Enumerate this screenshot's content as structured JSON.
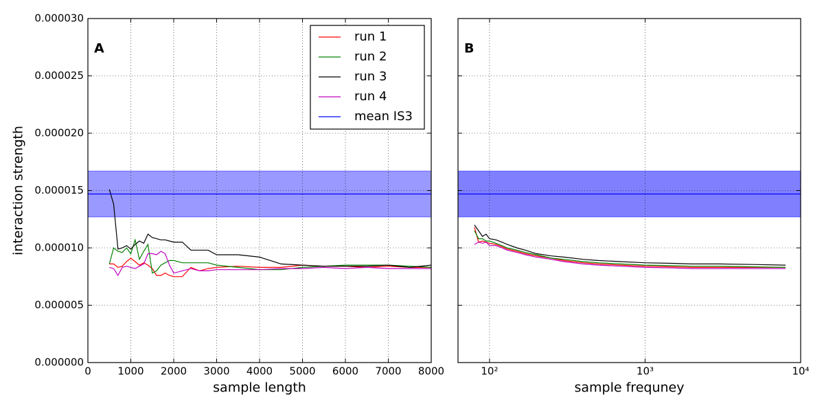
{
  "chart_data": [
    {
      "type": "line",
      "panel_label": "A",
      "xlabel": "sample length",
      "ylabel": "interaction strength",
      "xlim": [
        0,
        8000
      ],
      "xticks": [
        0,
        1000,
        2000,
        3000,
        4000,
        5000,
        6000,
        7000,
        8000
      ],
      "ylim": [
        0,
        3e-05
      ],
      "yticks": [
        {
          "value": 0,
          "label": "0.000000"
        },
        {
          "value": 5e-06,
          "label": "0.000005"
        },
        {
          "value": 1e-05,
          "label": "0.000010"
        },
        {
          "value": 1.5e-05,
          "label": "0.000015"
        },
        {
          "value": 2e-05,
          "label": "0.000020"
        },
        {
          "value": 2.5e-05,
          "label": "0.000025"
        },
        {
          "value": 3e-05,
          "label": "0.000030"
        }
      ],
      "grid": true,
      "legend": "upper right",
      "x": [
        500,
        600,
        700,
        800,
        900,
        1000,
        1100,
        1200,
        1300,
        1400,
        1500,
        1600,
        1700,
        1800,
        1900,
        2000,
        2200,
        2400,
        2600,
        2800,
        3000,
        3500,
        4000,
        4500,
        5000,
        5500,
        6000,
        6500,
        7000,
        7500,
        8000
      ],
      "series": [
        {
          "name": "run 1",
          "color": "#ff0000",
          "values": [
            8.6e-06,
            8.6e-06,
            8.3e-06,
            8.4e-06,
            8.8e-06,
            9.1e-06,
            8.8e-06,
            8.5e-06,
            8.7e-06,
            8.5e-06,
            8.2e-06,
            7.6e-06,
            7.6e-06,
            7.8e-06,
            7.6e-06,
            7.5e-06,
            7.5e-06,
            8.3e-06,
            8e-06,
            8.2e-06,
            8.3e-06,
            8.4e-06,
            8.3e-06,
            8.3e-06,
            8.5e-06,
            8.4e-06,
            8.4e-06,
            8.3e-06,
            8.4e-06,
            8.3e-06,
            8.3e-06
          ]
        },
        {
          "name": "run 2",
          "color": "#008000",
          "values": [
            8.6e-06,
            1e-05,
            9.7e-06,
            9.6e-06,
            1e-05,
            9.5e-06,
            1.07e-05,
            9e-06,
            9.7e-06,
            1.03e-05,
            7.8e-06,
            8e-06,
            8.5e-06,
            8.7e-06,
            8.9e-06,
            8.9e-06,
            8.7e-06,
            8.7e-06,
            8.7e-06,
            8.7e-06,
            8.5e-06,
            8.3e-06,
            8.1e-06,
            8.1e-06,
            8.3e-06,
            8.4e-06,
            8.5e-06,
            8.5e-06,
            8.5e-06,
            8.4e-06,
            8.3e-06
          ]
        },
        {
          "name": "run 3",
          "color": "#000000",
          "values": [
            1.51e-05,
            1.38e-05,
            9.9e-06,
            1e-05,
            1.02e-05,
            9.9e-06,
            1.03e-05,
            1.06e-05,
            1.04e-05,
            1.12e-05,
            1.09e-05,
            1.08e-05,
            1.07e-05,
            1.07e-05,
            1.06e-05,
            1.05e-05,
            1.05e-05,
            9.8e-06,
            9.8e-06,
            9.8e-06,
            9.4e-06,
            9.4e-06,
            9.2e-06,
            8.6e-06,
            8.5e-06,
            8.4e-06,
            8.4e-06,
            8.4e-06,
            8.5e-06,
            8.3e-06,
            8.5e-06
          ]
        },
        {
          "name": "run 4",
          "color": "#bf00bf",
          "values": [
            8.3e-06,
            8.2e-06,
            7.6e-06,
            8.3e-06,
            8.4e-06,
            8.3e-06,
            8.2e-06,
            8.4e-06,
            8.6e-06,
            9.5e-06,
            9.5e-06,
            9.4e-06,
            9.7e-06,
            9.5e-06,
            8.5e-06,
            7.8e-06,
            8e-06,
            8.2e-06,
            8e-06,
            8e-06,
            8.1e-06,
            8.1e-06,
            8.1e-06,
            8.2e-06,
            8.2e-06,
            8.3e-06,
            8.2e-06,
            8.3e-06,
            8.2e-06,
            8.2e-06,
            8.2e-06
          ]
        },
        {
          "name": "mean IS3",
          "color": "#0000ff",
          "value": 1.47e-05,
          "band": [
            1.27e-05,
            1.67e-05
          ],
          "band_color": "#9999ff"
        }
      ]
    },
    {
      "type": "line",
      "panel_label": "B",
      "xlabel": "sample frequney",
      "log_x": true,
      "xlim": [
        62.7,
        10000
      ],
      "xticks": [
        {
          "value": 100,
          "label": "10²"
        },
        {
          "value": 1000,
          "label": "10³"
        },
        {
          "value": 10000,
          "label": "10⁴"
        }
      ],
      "ylim": [
        0,
        3e-05
      ],
      "yticks": [
        0,
        5e-06,
        1e-05,
        1.5e-05,
        2e-05,
        2.5e-05,
        3e-05
      ],
      "grid": true,
      "x": [
        80,
        85,
        90,
        95,
        100,
        110,
        120,
        130,
        150,
        170,
        200,
        250,
        300,
        400,
        500,
        700,
        1000,
        1500,
        2000,
        3000,
        5000,
        8000
      ],
      "series": [
        {
          "color": "#ff0000",
          "values": [
            1.18e-05,
            1.05e-05,
            1.06e-05,
            1.05e-05,
            1.04e-05,
            1.03e-05,
            1.01e-05,
            9.9e-06,
            9.7e-06,
            9.5e-06,
            9.3e-06,
            9.1e-06,
            8.9e-06,
            8.7e-06,
            8.6e-06,
            8.5e-06,
            8.4e-06,
            8.35e-06,
            8.3e-06,
            8.3e-06,
            8.3e-06,
            8.3e-06
          ]
        },
        {
          "color": "#008000",
          "values": [
            1.15e-05,
            1.08e-05,
            1.08e-05,
            1.06e-05,
            1.06e-05,
            1.04e-05,
            1.02e-05,
            1e-05,
            9.8e-06,
            9.6e-06,
            9.4e-06,
            9.1e-06,
            9e-06,
            8.8e-06,
            8.7e-06,
            8.6e-06,
            8.5e-06,
            8.45e-06,
            8.4e-06,
            8.4e-06,
            8.35e-06,
            8.3e-06
          ]
        },
        {
          "color": "#000000",
          "values": [
            1.2e-05,
            1.15e-05,
            1.1e-05,
            1.12e-05,
            1.08e-05,
            1.07e-05,
            1.05e-05,
            1.03e-05,
            1e-05,
            9.8e-06,
            9.5e-06,
            9.3e-06,
            9.2e-06,
            9e-06,
            8.9e-06,
            8.8e-06,
            8.7e-06,
            8.65e-06,
            8.6e-06,
            8.6e-06,
            8.55e-06,
            8.5e-06
          ]
        },
        {
          "color": "#bf00bf",
          "values": [
            1.03e-05,
            1.05e-05,
            1.04e-05,
            1.05e-05,
            1.02e-05,
            1.02e-05,
            1e-05,
            9.8e-06,
            9.6e-06,
            9.4e-06,
            9.2e-06,
            9e-06,
            8.8e-06,
            8.6e-06,
            8.5e-06,
            8.4e-06,
            8.3e-06,
            8.25e-06,
            8.2e-06,
            8.2e-06,
            8.2e-06,
            8.2e-06
          ]
        },
        {
          "color": "#0000ff",
          "value": 1.47e-05,
          "band": [
            1.27e-05,
            1.67e-05
          ],
          "band_color": "#8080ff"
        }
      ]
    }
  ]
}
